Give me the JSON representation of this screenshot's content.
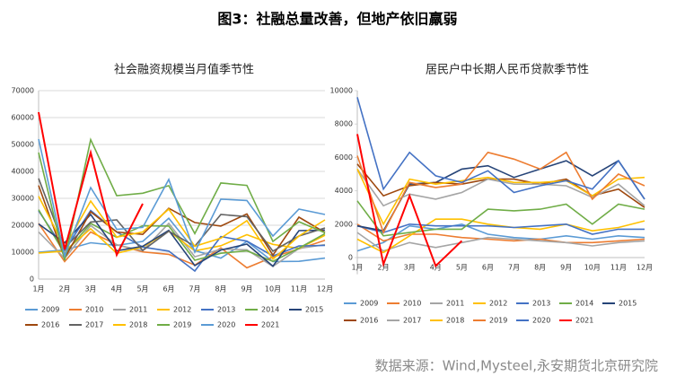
{
  "title": "图3：社融总量改善，但地产依旧羸弱",
  "source": "数据来源：Wind,Mysteel,永安期货北京研究院",
  "chart_data": [
    {
      "type": "line",
      "title": "社会融资规模当月值季节性",
      "categories": [
        "1月",
        "2月",
        "3月",
        "4月",
        "5月",
        "6月",
        "7月",
        "8月",
        "9月",
        "10月",
        "11月",
        "12月"
      ],
      "ylim": [
        0,
        70000
      ],
      "yticks": [
        0,
        10000,
        20000,
        30000,
        40000,
        50000,
        60000,
        70000
      ],
      "grid": true,
      "series": [
        {
          "name": "2009",
          "color": "#5b9bd5",
          "values": [
            10000,
            10800,
            13500,
            12500,
            14000,
            22600,
            10600,
            7800,
            14000,
            6500,
            6600,
            7800
          ]
        },
        {
          "name": "2010",
          "color": "#ed7d31",
          "values": [
            20700,
            6500,
            17500,
            12800,
            10100,
            9200,
            5200,
            11600,
            4200,
            8200,
            11200,
            14400
          ]
        },
        {
          "name": "2011",
          "color": "#a5a5a5",
          "values": [
            17500,
            7700,
            19900,
            12700,
            10600,
            20700,
            8300,
            11100,
            10900,
            4700,
            11400,
            12800
          ]
        },
        {
          "name": "2012",
          "color": "#ffc000",
          "values": [
            9700,
            10400,
            18700,
            9600,
            11900,
            17800,
            10500,
            12400,
            16500,
            12900,
            11400,
            16300
          ]
        },
        {
          "name": "2013",
          "color": "#4472c4",
          "values": [
            25400,
            10700,
            25500,
            17500,
            11900,
            10400,
            3000,
            15800,
            14100,
            8600,
            12300,
            12500
          ]
        },
        {
          "name": "2014",
          "color": "#70ad47",
          "values": [
            25800,
            9400,
            20700,
            15500,
            19800,
            19700,
            7000,
            9600,
            10500,
            6600,
            11500,
            16900
          ]
        },
        {
          "name": "2015",
          "color": "#264478",
          "values": [
            20500,
            13500,
            24000,
            10500,
            12200,
            18100,
            5000,
            10800,
            13000,
            4800,
            18000,
            18200
          ]
        },
        {
          "name": "2016",
          "color": "#9e480e",
          "values": [
            34800,
            7800,
            25000,
            17500,
            16600,
            26300,
            21000,
            19700,
            24200,
            8900,
            23000,
            17300
          ]
        },
        {
          "name": "2017",
          "color": "#636363",
          "values": [
            37400,
            11700,
            21200,
            22000,
            10600,
            17800,
            12200,
            24000,
            23200,
            10400,
            16000,
            19000
          ]
        },
        {
          "name": "2018",
          "color": "#ffc000",
          "values": [
            30800,
            11800,
            29000,
            15600,
            17500,
            26000,
            12200,
            15200,
            21700,
            7400,
            16000,
            22000
          ]
        },
        {
          "name": "2019",
          "color": "#70ad47",
          "values": [
            47000,
            7000,
            51800,
            31000,
            31900,
            34700,
            16900,
            35700,
            34800,
            14000,
            21300,
            17200
          ]
        },
        {
          "name": "2020",
          "color": "#5b9bd5",
          "values": [
            52000,
            8600,
            34000,
            18500,
            19200,
            37000,
            10000,
            29700,
            29200,
            16000,
            26000,
            24000
          ]
        },
        {
          "name": "2021",
          "color": "#ff0000",
          "values": [
            62000,
            11000,
            47000,
            9000,
            28000,
            null,
            null,
            null,
            null,
            null,
            null,
            null
          ]
        }
      ]
    },
    {
      "type": "line",
      "title": "居民户中长期人民币贷款季节性",
      "categories": [
        "1月",
        "2月",
        "3月",
        "4月",
        "5月",
        "6月",
        "7月",
        "8月",
        "9月",
        "10月",
        "11月",
        "12月"
      ],
      "ylim": [
        -1000,
        10000
      ],
      "yticks": [
        0,
        2000,
        4000,
        6000,
        8000,
        10000
      ],
      "grid": false,
      "series": [
        {
          "name": "2009",
          "color": "#5b9bd5",
          "values": [
            400,
            900,
            1900,
            1700,
            2000,
            1400,
            1200,
            1100,
            1300,
            1100,
            1300,
            1200
          ]
        },
        {
          "name": "2010",
          "color": "#ed7d31",
          "values": [
            2000,
            1000,
            1400,
            1400,
            1200,
            1100,
            1000,
            1100,
            900,
            900,
            1000,
            1100
          ]
        },
        {
          "name": "2011",
          "color": "#a5a5a5",
          "values": [
            1500,
            400,
            900,
            600,
            900,
            1200,
            1100,
            1000,
            900,
            700,
            900,
            1000
          ]
        },
        {
          "name": "2012",
          "color": "#ffc000",
          "values": [
            1100,
            300,
            1300,
            2300,
            2300,
            2000,
            1800,
            1700,
            2000,
            1600,
            1800,
            2200
          ]
        },
        {
          "name": "2013",
          "color": "#4472c4",
          "values": [
            1900,
            1500,
            2000,
            1900,
            1900,
            1900,
            1800,
            1900,
            2000,
            1400,
            1700,
            1700
          ]
        },
        {
          "name": "2014",
          "color": "#70ad47",
          "values": [
            3400,
            1300,
            1500,
            1700,
            1700,
            2900,
            2800,
            2900,
            3200,
            2000,
            3200,
            2900
          ]
        },
        {
          "name": "2015",
          "color": "#264478",
          "values": [
            1900,
            1600,
            4400,
            4500,
            5300,
            5500,
            4800,
            5300,
            5800,
            4900,
            5800,
            3500
          ]
        },
        {
          "name": "2016",
          "color": "#9e480e",
          "values": [
            5600,
            3700,
            4300,
            4500,
            4400,
            4700,
            4700,
            4400,
            4700,
            3700,
            4100,
            3000
          ]
        },
        {
          "name": "2017",
          "color": "#a5a5a5",
          "values": [
            5300,
            3100,
            3800,
            3500,
            3900,
            4700,
            4400,
            4400,
            4300,
            3600,
            4400,
            3100
          ]
        },
        {
          "name": "2018",
          "color": "#ffc000",
          "values": [
            5300,
            2000,
            4700,
            4400,
            4600,
            4800,
            4500,
            4500,
            4600,
            3700,
            4700,
            4800
          ]
        },
        {
          "name": "2019",
          "color": "#ed7d31",
          "values": [
            6100,
            1500,
            4500,
            4200,
            4400,
            6300,
            5900,
            5300,
            6300,
            3500,
            5000,
            4300
          ]
        },
        {
          "name": "2020",
          "color": "#4472c4",
          "values": [
            9600,
            4100,
            6300,
            4900,
            4500,
            5200,
            3900,
            4300,
            4600,
            4100,
            5800,
            3500
          ]
        },
        {
          "name": "2021",
          "color": "#ff0000",
          "values": [
            7400,
            -400,
            3700,
            -500,
            1000,
            null,
            null,
            null,
            null,
            null,
            null,
            null
          ]
        }
      ]
    }
  ]
}
